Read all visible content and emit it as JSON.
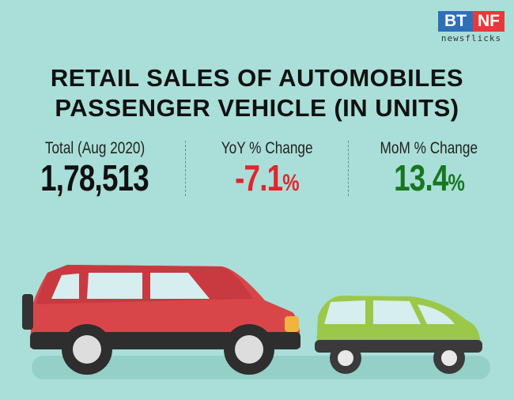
{
  "logo": {
    "left": "BT",
    "right": "NF",
    "tagline": "newsflicks"
  },
  "title": {
    "line1": "RETAIL SALES OF AUTOMOBILES",
    "line2": "PASSENGER VEHICLE (IN UNITS)"
  },
  "stats": [
    {
      "label": "Total (Aug 2020)",
      "value": "1,78,513",
      "unit": "",
      "color": "#111111"
    },
    {
      "label": "YoY % Change",
      "value": "-7.1",
      "unit": "%",
      "color": "#e0262d"
    },
    {
      "label": "MoM % Change",
      "value": "13.4",
      "unit": "%",
      "color": "#17761f"
    }
  ],
  "colors": {
    "background": "#a9dfd8",
    "suv": "#d9464a",
    "hatchback": "#9bc84a"
  }
}
